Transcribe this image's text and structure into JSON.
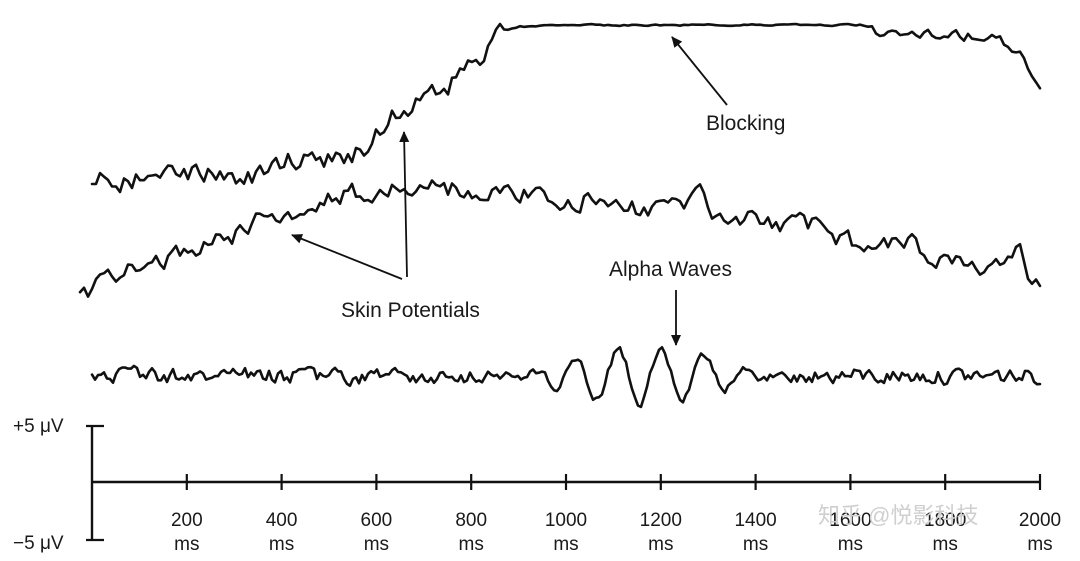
{
  "diagram": {
    "labels": {
      "blocking": "Blocking",
      "skin_potentials": "Skin Potentials",
      "alpha_waves": "Alpha Waves"
    },
    "scale": {
      "upper": "+5 μV",
      "lower": "−5 μV"
    },
    "time_axis": {
      "unit": "ms",
      "ticks": [
        "200",
        "400",
        "600",
        "800",
        "1000",
        "1200",
        "1400",
        "1600",
        "1800",
        "2000"
      ]
    },
    "traces": [
      "blocking-trace",
      "skin-potential-trace",
      "alpha-wave-trace"
    ]
  },
  "watermark": "知乎 @悦影科技"
}
